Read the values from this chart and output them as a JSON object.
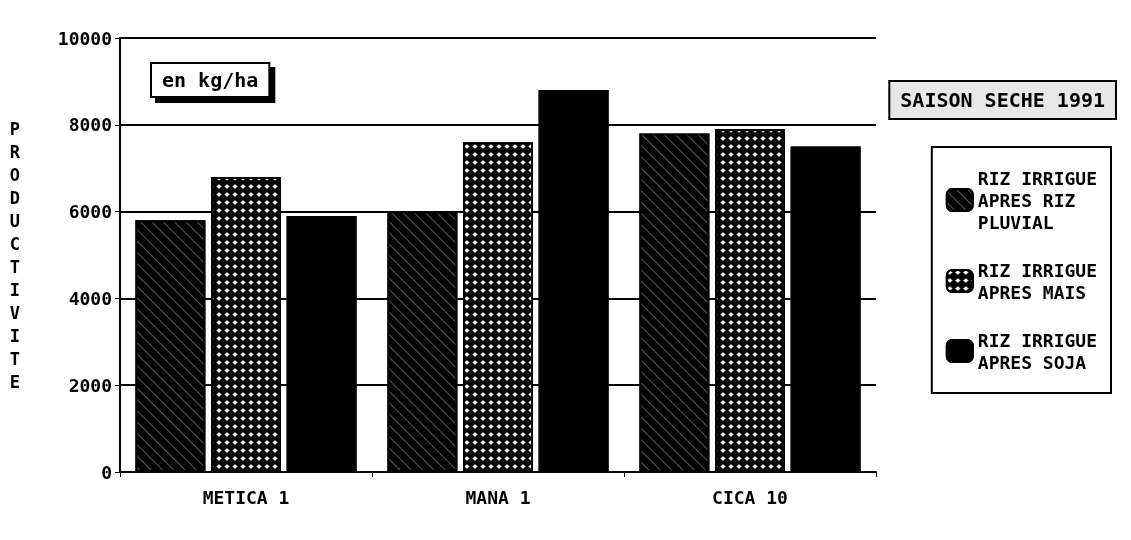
{
  "chart_data": {
    "type": "bar",
    "ylabel": "PRODUCTIVITE",
    "categories": [
      "METICA 1",
      "MANA 1",
      "CICA 10"
    ],
    "series": [
      {
        "name": "RIZ IRRIGUE\nAPRES RIZ\nPLUVIAL",
        "color": "#000000",
        "values": [
          5800,
          6000,
          7800
        ]
      },
      {
        "name": "RIZ IRRIGUE\nAPRES MAIS",
        "color": "#000000",
        "values": [
          6800,
          7600,
          7900
        ]
      },
      {
        "name": "RIZ IRRIGUE\nAPRES SOJA",
        "color": "#000000",
        "values": [
          5900,
          8800,
          7500
        ]
      }
    ],
    "ylim": [
      0,
      10000
    ],
    "yticks": [
      0,
      2000,
      4000,
      6000,
      8000,
      10000
    ],
    "grid": "y",
    "legend": "right",
    "annotations": [
      "en kg/ha",
      "SAISON SECHE 1991"
    ]
  }
}
